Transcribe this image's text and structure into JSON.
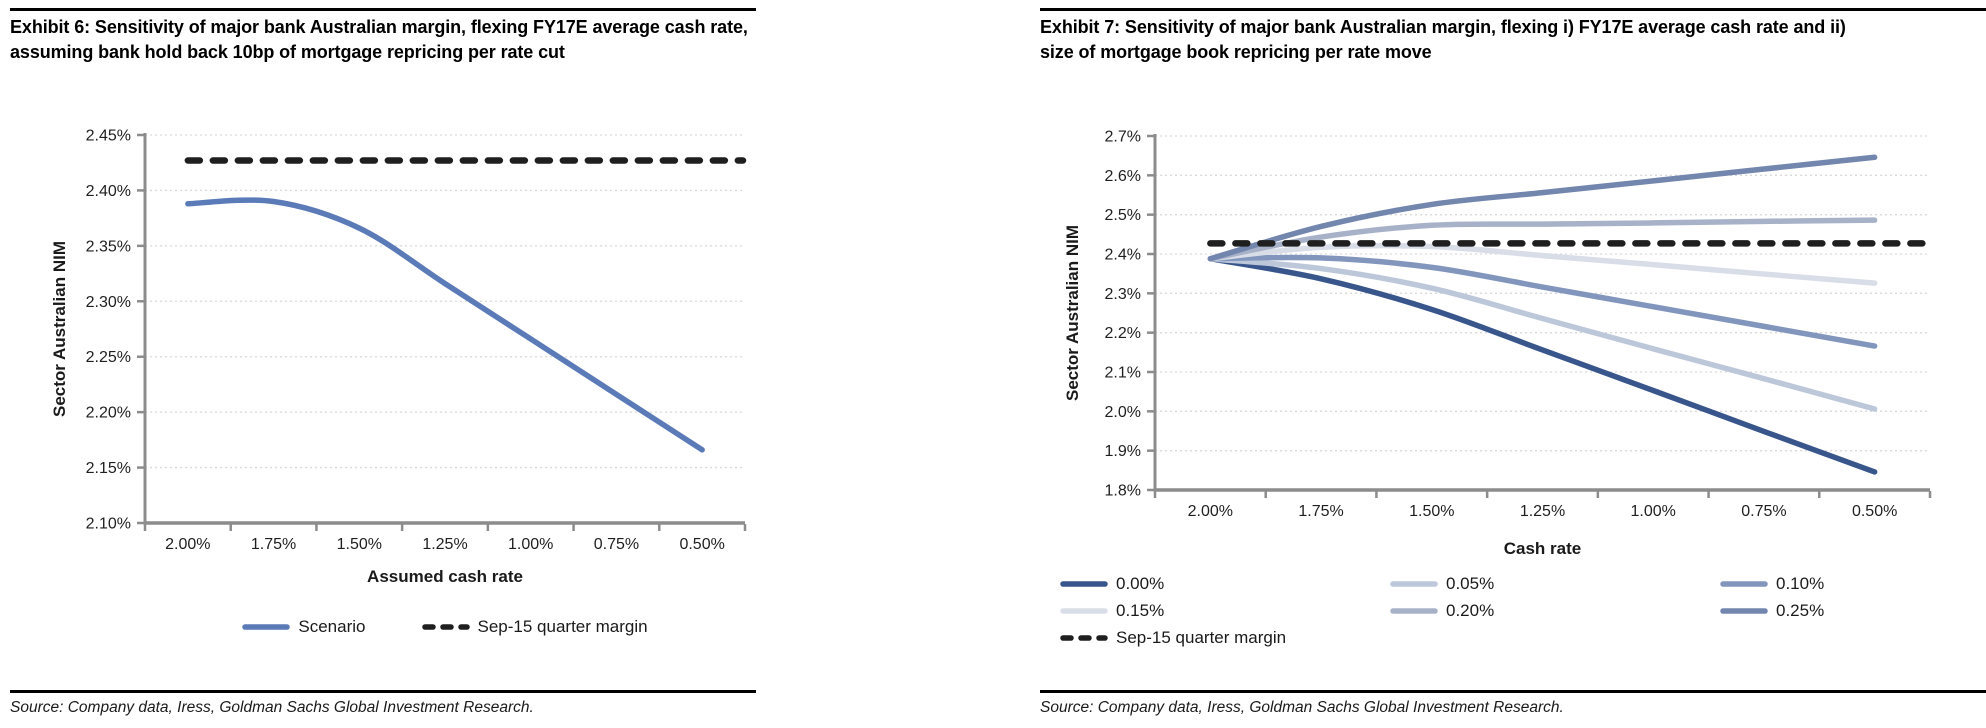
{
  "exhibits": [
    {
      "title": "Exhibit 6: Sensitivity of major bank Australian margin, flexing FY17E average cash rate, assuming bank hold back 10bp of mortgage repricing per rate cut",
      "source": "Source: Company data, Iress, Goldman Sachs Global Investment Research."
    },
    {
      "title": "Exhibit 7: Sensitivity of major bank Australian margin, flexing i) FY17E average cash rate and ii) size of mortgage book repricing per rate move",
      "source": "Source: Company data, Iress, Goldman Sachs Global Investment Research."
    }
  ],
  "colors": {
    "axis": "#8c8c8c",
    "gridline": "#d9d9d9",
    "dashed_margin": "#1f1f1f",
    "scenario_blue": "#5B7AB8"
  },
  "chart_data": [
    {
      "type": "line",
      "exhibit": "Exhibit 6",
      "categories": [
        "2.00%",
        "1.75%",
        "1.50%",
        "1.25%",
        "1.00%",
        "0.75%",
        "0.50%"
      ],
      "xlabel": "Assumed cash rate",
      "ylabel": "Sector Australian NIM",
      "ylim": [
        2.1,
        2.45
      ],
      "ytick_step": 0.05,
      "ytick_labels": [
        "2.10%",
        "2.15%",
        "2.20%",
        "2.25%",
        "2.30%",
        "2.35%",
        "2.40%",
        "2.45%"
      ],
      "grid": "horizontal-dotted",
      "legend_position": "bottom",
      "series": [
        {
          "name": "Scenario",
          "style": "solid",
          "color": "#5B7AB8",
          "values": [
            2.388,
            2.39,
            2.366,
            2.316,
            2.266,
            2.216,
            2.166
          ]
        },
        {
          "name": "Sep-15 quarter margin",
          "style": "dashed",
          "color": "#1f1f1f",
          "values": [
            2.427,
            2.427,
            2.427,
            2.427,
            2.427,
            2.427,
            2.427
          ]
        }
      ]
    },
    {
      "type": "line",
      "exhibit": "Exhibit 7",
      "categories": [
        "2.00%",
        "1.75%",
        "1.50%",
        "1.25%",
        "1.00%",
        "0.75%",
        "0.50%"
      ],
      "xlabel": "Cash rate",
      "ylabel": "Sector Australian NIM",
      "ylim": [
        1.8,
        2.7
      ],
      "ytick_step": 0.1,
      "ytick_labels": [
        "1.8%",
        "1.9%",
        "2.0%",
        "2.1%",
        "2.2%",
        "2.3%",
        "2.4%",
        "2.5%",
        "2.6%",
        "2.7%"
      ],
      "grid": "horizontal-dotted",
      "legend_position": "bottom",
      "series": [
        {
          "name": "0.00%",
          "style": "solid",
          "color": "#39568C",
          "values": [
            2.388,
            2.337,
            2.259,
            2.156,
            2.053,
            1.949,
            1.846
          ]
        },
        {
          "name": "0.05%",
          "style": "solid",
          "color": "#BDC7DA",
          "values": [
            2.388,
            2.363,
            2.313,
            2.236,
            2.159,
            2.083,
            2.006
          ]
        },
        {
          "name": "0.10%",
          "style": "solid",
          "color": "#8296BD",
          "values": [
            2.388,
            2.39,
            2.366,
            2.316,
            2.266,
            2.216,
            2.166
          ]
        },
        {
          "name": "0.15%",
          "style": "solid",
          "color": "#D8DDE7",
          "values": [
            2.388,
            2.417,
            2.419,
            2.396,
            2.373,
            2.349,
            2.326
          ]
        },
        {
          "name": "0.20%",
          "style": "solid",
          "color": "#A7B2C9",
          "values": [
            2.388,
            2.443,
            2.473,
            2.476,
            2.479,
            2.483,
            2.486
          ]
        },
        {
          "name": "0.25%",
          "style": "solid",
          "color": "#7386AE",
          "values": [
            2.388,
            2.47,
            2.526,
            2.556,
            2.586,
            2.616,
            2.646
          ]
        },
        {
          "name": "Sep-15 quarter margin",
          "style": "dashed",
          "color": "#1f1f1f",
          "values": [
            2.427,
            2.427,
            2.427,
            2.427,
            2.427,
            2.427,
            2.427
          ]
        }
      ]
    }
  ]
}
